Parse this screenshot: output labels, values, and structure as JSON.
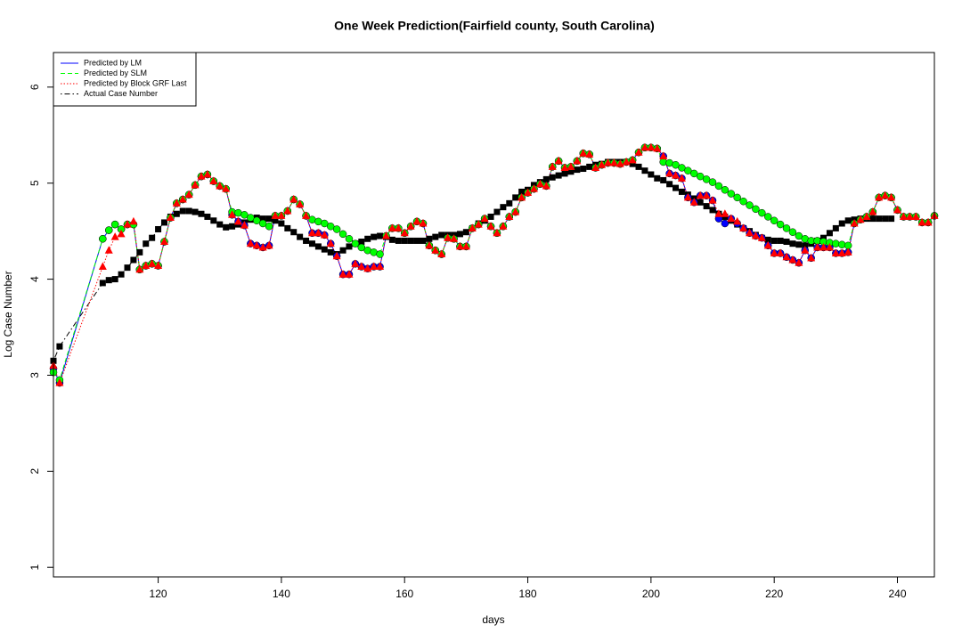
{
  "chart_data": {
    "type": "line",
    "title": "One Week Prediction(Fairfield county, South Carolina)",
    "x_label": "days",
    "y_label": "Log Case Number",
    "xlim": [
      103,
      246
    ],
    "ylim": [
      0.9,
      6.36
    ],
    "xticks": [
      120,
      140,
      160,
      180,
      200,
      220,
      240
    ],
    "yticks": [
      1,
      2,
      3,
      4,
      5,
      6
    ],
    "legend": "top-left",
    "x": [
      103,
      104,
      111,
      112,
      113,
      114,
      115,
      116,
      117,
      118,
      119,
      120,
      121,
      122,
      123,
      124,
      125,
      126,
      127,
      128,
      129,
      130,
      131,
      132,
      133,
      134,
      135,
      136,
      137,
      138,
      139,
      140,
      141,
      142,
      143,
      144,
      145,
      146,
      147,
      148,
      149,
      150,
      151,
      152,
      153,
      154,
      155,
      156,
      157,
      158,
      159,
      160,
      161,
      162,
      163,
      164,
      165,
      166,
      167,
      168,
      169,
      170,
      171,
      172,
      173,
      174,
      175,
      176,
      177,
      178,
      179,
      180,
      181,
      182,
      183,
      184,
      185,
      186,
      187,
      188,
      189,
      190,
      191,
      192,
      193,
      194,
      195,
      196,
      197,
      198,
      199,
      200,
      201,
      202,
      203,
      204,
      205,
      206,
      207,
      208,
      209,
      210,
      211,
      212,
      213,
      214,
      215,
      216,
      217,
      218,
      219,
      220,
      221,
      222,
      223,
      224,
      225,
      226,
      227,
      228,
      229,
      230,
      231,
      232,
      233,
      234,
      235,
      236,
      237,
      238,
      239,
      240,
      241,
      242,
      243,
      244,
      245,
      246
    ],
    "series": [
      {
        "name": "Actual Case Number",
        "color": "#000000",
        "dash": "dotdash",
        "marker": "square",
        "values": [
          3.15,
          3.3,
          3.96,
          3.99,
          4.0,
          4.05,
          4.12,
          4.2,
          4.28,
          4.37,
          4.43,
          4.52,
          4.59,
          4.65,
          4.68,
          4.71,
          4.71,
          4.7,
          4.68,
          4.65,
          4.61,
          4.57,
          4.54,
          4.55,
          4.57,
          4.59,
          4.62,
          4.64,
          4.63,
          4.63,
          4.61,
          4.58,
          4.53,
          4.49,
          4.44,
          4.4,
          4.37,
          4.34,
          4.31,
          4.28,
          4.26,
          4.3,
          4.34,
          4.37,
          4.39,
          4.42,
          4.44,
          4.45,
          4.44,
          4.41,
          4.4,
          4.4,
          4.4,
          4.4,
          4.4,
          4.42,
          4.44,
          4.46,
          4.46,
          4.46,
          4.47,
          4.49,
          4.53,
          4.58,
          4.61,
          4.65,
          4.7,
          4.75,
          4.79,
          4.85,
          4.91,
          4.93,
          4.98,
          5.01,
          5.04,
          5.06,
          5.08,
          5.1,
          5.12,
          5.14,
          5.15,
          5.17,
          5.19,
          5.2,
          5.22,
          5.22,
          5.22,
          5.22,
          5.2,
          5.17,
          5.13,
          5.09,
          5.05,
          5.03,
          4.99,
          4.95,
          4.91,
          4.88,
          4.84,
          4.8,
          4.76,
          4.72,
          4.68,
          4.65,
          4.61,
          4.57,
          4.53,
          4.5,
          4.46,
          4.43,
          4.41,
          4.4,
          4.4,
          4.39,
          4.37,
          4.36,
          4.35,
          4.37,
          4.4,
          4.43,
          4.48,
          4.53,
          4.58,
          4.61,
          4.62,
          4.63,
          4.63,
          4.63,
          4.63,
          4.63,
          4.63,
          null,
          null,
          null,
          null,
          null,
          null,
          null
        ]
      },
      {
        "name": "Predicted by LM",
        "color": "#0000ff",
        "dash": "solid",
        "marker": "circle",
        "values": [
          3.07,
          2.92,
          4.42,
          4.51,
          4.57,
          4.52,
          4.57,
          4.57,
          4.1,
          4.14,
          4.16,
          4.14,
          4.39,
          4.64,
          4.79,
          4.83,
          4.88,
          4.98,
          5.07,
          5.09,
          5.02,
          4.97,
          4.94,
          4.67,
          4.6,
          4.56,
          4.37,
          4.35,
          4.33,
          4.35,
          4.66,
          4.66,
          4.71,
          4.83,
          4.78,
          4.66,
          4.48,
          4.48,
          4.46,
          4.37,
          4.24,
          4.05,
          4.05,
          4.16,
          4.13,
          4.11,
          4.13,
          4.13,
          4.45,
          4.53,
          4.53,
          4.48,
          4.55,
          4.6,
          4.58,
          4.35,
          4.3,
          4.26,
          4.43,
          4.42,
          4.34,
          4.34,
          4.53,
          4.57,
          4.63,
          4.55,
          4.48,
          4.55,
          4.65,
          4.7,
          4.85,
          4.9,
          4.94,
          4.99,
          4.97,
          5.17,
          5.23,
          5.16,
          5.17,
          5.23,
          5.31,
          5.3,
          5.16,
          5.19,
          5.21,
          5.21,
          5.2,
          5.22,
          5.24,
          5.32,
          5.37,
          5.37,
          5.36,
          5.28,
          5.1,
          5.08,
          5.05,
          4.85,
          4.8,
          4.87,
          4.87,
          4.82,
          4.63,
          4.58,
          4.63,
          4.58,
          4.53,
          4.48,
          4.45,
          4.43,
          4.35,
          4.27,
          4.27,
          4.23,
          4.2,
          4.17,
          4.3,
          4.22,
          4.33,
          4.33,
          4.33,
          4.27,
          4.27,
          4.28,
          4.58,
          4.62,
          4.65,
          4.7,
          4.85,
          4.87,
          4.85,
          4.72,
          4.65,
          4.65,
          4.65,
          4.59,
          4.59,
          4.66
        ]
      },
      {
        "name": "Predicted by SLM",
        "color": "#00ff00",
        "dash": "dashed",
        "marker": "circle",
        "values": [
          3.03,
          2.95,
          4.42,
          4.51,
          4.57,
          4.52,
          4.57,
          4.57,
          4.1,
          4.14,
          4.16,
          4.14,
          4.39,
          4.64,
          4.79,
          4.83,
          4.88,
          4.98,
          5.07,
          5.09,
          5.02,
          4.97,
          4.94,
          4.7,
          4.69,
          4.67,
          4.64,
          4.61,
          4.58,
          4.55,
          4.66,
          4.66,
          4.71,
          4.83,
          4.78,
          4.66,
          4.62,
          4.6,
          4.58,
          4.55,
          4.52,
          4.47,
          4.42,
          4.37,
          4.33,
          4.3,
          4.28,
          4.26,
          4.45,
          4.53,
          4.53,
          4.48,
          4.55,
          4.6,
          4.58,
          4.35,
          4.3,
          4.26,
          4.43,
          4.42,
          4.34,
          4.34,
          4.53,
          4.57,
          4.63,
          4.55,
          4.48,
          4.55,
          4.65,
          4.7,
          4.85,
          4.9,
          4.94,
          4.99,
          4.97,
          5.17,
          5.23,
          5.16,
          5.17,
          5.23,
          5.31,
          5.3,
          5.16,
          5.19,
          5.21,
          5.21,
          5.2,
          5.22,
          5.24,
          5.32,
          5.37,
          5.37,
          5.36,
          5.22,
          5.21,
          5.19,
          5.16,
          5.13,
          5.1,
          5.07,
          5.04,
          5.01,
          4.97,
          4.93,
          4.89,
          4.85,
          4.81,
          4.77,
          4.73,
          4.69,
          4.65,
          4.61,
          4.57,
          4.53,
          4.49,
          4.45,
          4.42,
          4.4,
          4.4,
          4.39,
          4.38,
          4.37,
          4.36,
          4.35,
          4.58,
          4.62,
          4.65,
          4.7,
          4.85,
          4.87,
          4.85,
          4.72,
          4.65,
          4.65,
          4.65,
          4.59,
          4.59,
          4.66
        ]
      },
      {
        "name": "Predicted by Block GRF Last",
        "color": "#ff0000",
        "dash": "dotted",
        "marker": "triangle",
        "values": [
          3.1,
          2.92,
          4.13,
          4.3,
          4.44,
          4.47,
          4.57,
          4.6,
          4.1,
          4.14,
          4.16,
          4.14,
          4.39,
          4.64,
          4.79,
          4.83,
          4.88,
          4.98,
          5.07,
          5.09,
          5.02,
          4.97,
          4.94,
          4.67,
          4.6,
          4.56,
          4.37,
          4.35,
          4.33,
          4.35,
          4.66,
          4.66,
          4.71,
          4.83,
          4.78,
          4.66,
          4.48,
          4.48,
          4.46,
          4.37,
          4.24,
          4.05,
          4.05,
          4.16,
          4.13,
          4.11,
          4.13,
          4.13,
          4.45,
          4.53,
          4.53,
          4.48,
          4.55,
          4.6,
          4.58,
          4.35,
          4.3,
          4.26,
          4.43,
          4.42,
          4.34,
          4.34,
          4.53,
          4.57,
          4.63,
          4.55,
          4.48,
          4.55,
          4.65,
          4.7,
          4.85,
          4.9,
          4.94,
          4.99,
          4.97,
          5.17,
          5.23,
          5.16,
          5.17,
          5.23,
          5.31,
          5.3,
          5.16,
          5.19,
          5.21,
          5.21,
          5.2,
          5.22,
          5.24,
          5.32,
          5.37,
          5.37,
          5.36,
          5.28,
          5.1,
          5.08,
          5.05,
          4.85,
          4.8,
          4.87,
          4.87,
          4.82,
          4.68,
          4.68,
          4.63,
          4.6,
          4.53,
          4.48,
          4.45,
          4.43,
          4.35,
          4.27,
          4.27,
          4.23,
          4.2,
          4.17,
          4.3,
          4.22,
          4.33,
          4.33,
          4.33,
          4.27,
          4.27,
          4.28,
          4.58,
          4.62,
          4.65,
          4.7,
          4.85,
          4.87,
          4.85,
          4.72,
          4.65,
          4.65,
          4.65,
          4.59,
          4.59,
          4.66
        ]
      }
    ]
  }
}
